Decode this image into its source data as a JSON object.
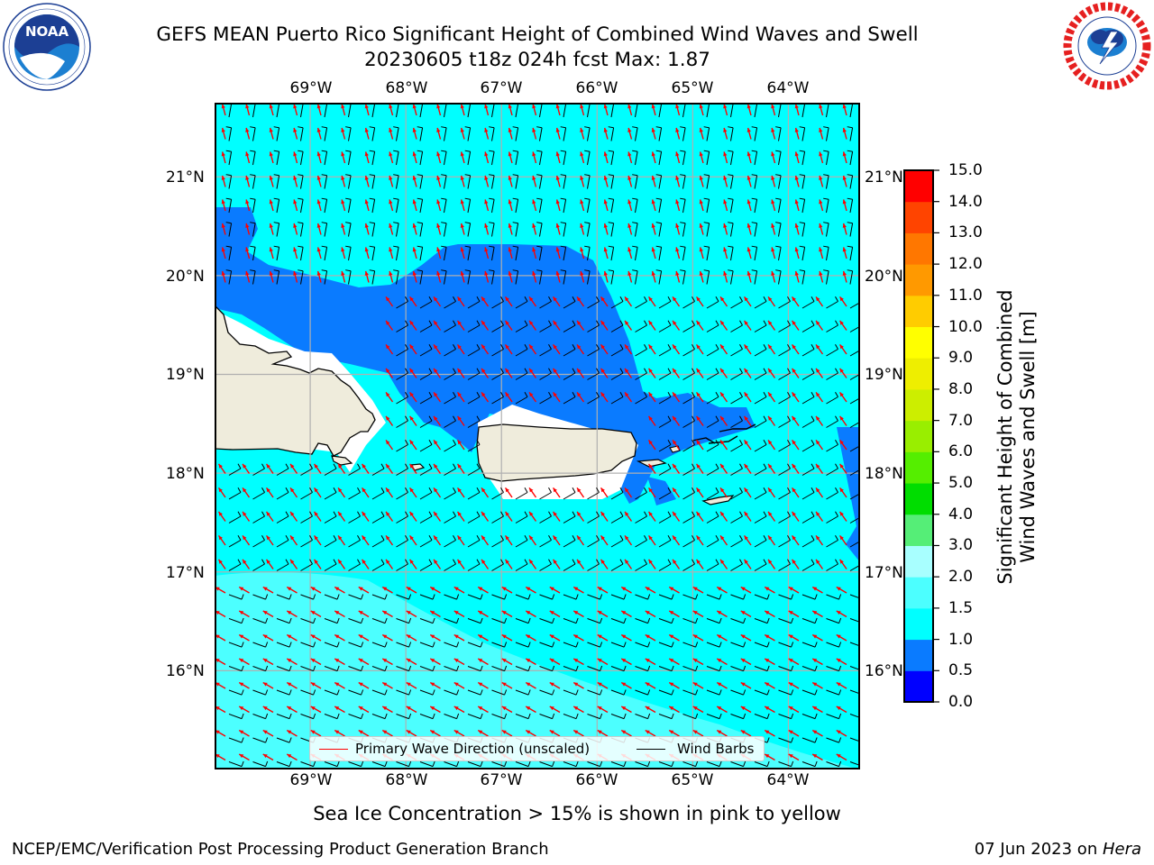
{
  "header": {
    "title_line1": "GEFS MEAN Puerto Rico Significant Height of Combined Wind Waves and Swell",
    "title_line2": "20230605 t18z 024h fcst   Max: 1.87"
  },
  "logos": {
    "noaa": {
      "icon": "noaa-logo-icon",
      "text": "NOAA",
      "ring_text": "NATIONAL OCEANIC AND ATMOSPHERIC ADMINISTRATION · U.S. DEPARTMENT OF COMMERCE"
    },
    "nws": {
      "icon": "nws-logo-icon",
      "ring_text": "NATIONAL WEATHER SERVICE"
    }
  },
  "map": {
    "lon_labels": [
      "69°W",
      "68°W",
      "67°W",
      "66°W",
      "65°W",
      "64°W"
    ],
    "lat_labels": [
      "21°N",
      "20°N",
      "19°N",
      "18°N",
      "17°N",
      "16°N"
    ],
    "lon_values": [
      -69,
      -68,
      -67,
      -66,
      -65,
      -64
    ],
    "lat_values": [
      21,
      20,
      19,
      18,
      17,
      16
    ],
    "lon_range": [
      -70,
      -63.25
    ],
    "lat_range": [
      15.0,
      21.75
    ],
    "grid": true,
    "colors": {
      "land": "#efecdc",
      "sea_0_5_1_0": "#0a7bff",
      "sea_1_0_1_5": "#00ffff",
      "sea_1_5_2_0": "#4cffff",
      "sea_0_0_0_5": "#0000ee",
      "wave_arrow": "#ff0000",
      "wind_barb": "#000000",
      "grid": "#b0b0b0"
    }
  },
  "colorbar": {
    "label_line1": "Significant Height of Combined",
    "label_line2": "Wind Waves and Swell [m]",
    "ticks": [
      "15.0",
      "14.0",
      "13.0",
      "12.0",
      "11.0",
      "10.0",
      "9.0",
      "8.0",
      "7.0",
      "6.0",
      "5.0",
      "4.0",
      "3.0",
      "2.0",
      "1.5",
      "1.0",
      "0.5",
      "0.0"
    ],
    "levels": [
      0.0,
      0.5,
      1.0,
      1.5,
      2.0,
      3.0,
      4.0,
      5.0,
      6.0,
      7.0,
      8.0,
      9.0,
      10.0,
      11.0,
      12.0,
      13.0,
      14.0,
      15.0
    ],
    "colors": [
      "#0000ff",
      "#0a7bff",
      "#00ffff",
      "#4cffff",
      "#a8ffff",
      "#55ee77",
      "#00dd00",
      "#55ee00",
      "#99ee00",
      "#ccee00",
      "#eeee00",
      "#ffff00",
      "#ffcc00",
      "#ff9900",
      "#ff7700",
      "#ff4400",
      "#ff0000"
    ]
  },
  "legend": {
    "wave_label": "Primary Wave Direction (unscaled)",
    "wind_label": "Wind Barbs"
  },
  "notes": {
    "ice": "Sea Ice Concentration > 15% is shown in pink to yellow"
  },
  "footer": {
    "left": "NCEP/EMC/Verification Post Processing Product Generation Branch",
    "date": "07 Jun 2023 on ",
    "machine": "Hera"
  },
  "chart_data": {
    "type": "heatmap",
    "title": "GEFS MEAN Puerto Rico Significant Height of Combined Wind Waves and Swell",
    "subtitle": "20230605 t18z 024h fcst   Max: 1.87",
    "colorbar_label": "Significant Height of Combined Wind Waves and Swell [m]",
    "max_value": 1.87,
    "xlim": [
      -70,
      -63.25
    ],
    "ylim": [
      15.0,
      21.75
    ],
    "x_ticks": [
      "69°W",
      "68°W",
      "67°W",
      "66°W",
      "65°W",
      "64°W"
    ],
    "y_ticks": [
      "21°N",
      "20°N",
      "19°N",
      "18°N",
      "17°N",
      "16°N"
    ],
    "series": [
      {
        "name": "Primary Wave Direction (unscaled)",
        "direction_from": "ESE"
      },
      {
        "name": "Wind Barbs",
        "direction_from": "E"
      }
    ],
    "legend_position": "bottom-center"
  }
}
